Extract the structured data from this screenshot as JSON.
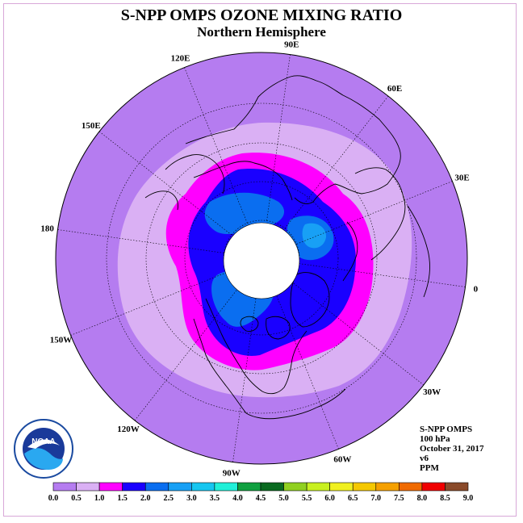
{
  "header": {
    "title": "S-NPP OMPS OZONE MIXING RATIO",
    "subtitle": "Northern Hemisphere"
  },
  "longitude_labels": [
    "90E",
    "60E",
    "30E",
    "0",
    "30W",
    "60W",
    "90W",
    "120W",
    "150W",
    "180",
    "150E",
    "120E"
  ],
  "info": {
    "instrument": "S-NPP OMPS",
    "level": "100 hPa",
    "date": "October 31, 2017",
    "version": "v6",
    "units": "PPM"
  },
  "logo": {
    "text": "NOAA",
    "ring_text": "NATIONAL OCEANIC AND ATMOSPHERIC ADMINISTRATION · U.S. DEPARTMENT OF COMMERCE"
  },
  "colorbar": {
    "ticks": [
      "0.0",
      "0.5",
      "1.0",
      "1.5",
      "2.0",
      "2.5",
      "3.0",
      "3.5",
      "4.0",
      "4.5",
      "5.0",
      "5.5",
      "6.0",
      "6.5",
      "7.0",
      "7.5",
      "8.0",
      "8.5",
      "9.0"
    ],
    "colors": [
      "#b57cf0",
      "#dab0f4",
      "#ff00ff",
      "#1a00ff",
      "#0a6ef0",
      "#18a0f5",
      "#16c6f0",
      "#20f0d8",
      "#10a040",
      "#0a6a20",
      "#90d020",
      "#c8f020",
      "#f0f020",
      "#f5c800",
      "#f5a000",
      "#f06a00",
      "#f00000",
      "#8a4a2a"
    ]
  },
  "map_colors": {
    "level_0_0": "#b57cf0",
    "level_0_5": "#dab0f4",
    "level_1_0": "#ff00ff",
    "level_1_5": "#1a00ff",
    "level_2_0": "#0a6ef0",
    "level_2_5": "#18a0f5",
    "no_data": "#ffffff"
  }
}
